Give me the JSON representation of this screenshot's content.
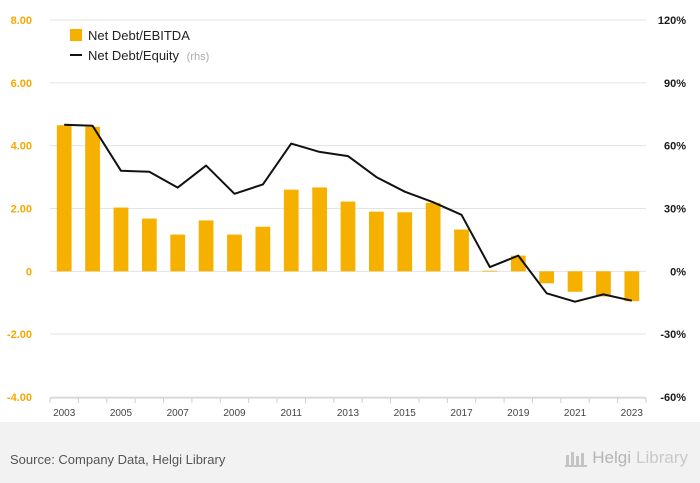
{
  "chart_data": {
    "type": "bar",
    "categories": [
      "2003",
      "2004",
      "2005",
      "2006",
      "2007",
      "2008",
      "2009",
      "2010",
      "2011",
      "2012",
      "2013",
      "2014",
      "2015",
      "2016",
      "2017",
      "2018",
      "2019",
      "2020",
      "2021",
      "2022",
      "2023"
    ],
    "x_tick_labels": [
      "2003",
      "2005",
      "2007",
      "2009",
      "2011",
      "2013",
      "2015",
      "2017",
      "2019",
      "2021",
      "2023"
    ],
    "series": [
      {
        "name": "Net Debt/EBITDA",
        "type": "bar",
        "axis": "left",
        "color": "#f5b000",
        "values": [
          4.65,
          4.6,
          2.03,
          1.68,
          1.17,
          1.62,
          1.17,
          1.42,
          2.6,
          2.67,
          2.22,
          1.9,
          1.88,
          2.18,
          1.33,
          0.02,
          0.5,
          -0.38,
          -0.65,
          -0.8,
          -0.95
        ]
      },
      {
        "name": "Net Debt/Equity",
        "name_note": "(rhs)",
        "type": "line",
        "axis": "right",
        "color": "#111111",
        "values": [
          70,
          69.5,
          48,
          47.5,
          40,
          50.5,
          37,
          41.5,
          61,
          57,
          55,
          45,
          38,
          33,
          27,
          2,
          7.5,
          -10.5,
          -14.5,
          -11,
          -14
        ]
      }
    ],
    "y_left": {
      "min": -4,
      "max": 8,
      "ticks": [
        "8.00",
        "6.00",
        "4.00",
        "2.00",
        "0",
        "-2.00",
        "-4.00"
      ]
    },
    "y_right": {
      "min": -60,
      "max": 120,
      "ticks": [
        "120%",
        "90%",
        "60%",
        "30%",
        "0%",
        "-30%",
        "-60%"
      ]
    },
    "grid": true,
    "legend_position": "top-left"
  },
  "footer": {
    "source": "Source: Company Data, Helgi Library",
    "brand_a": "Helgi",
    "brand_b": "Library"
  }
}
